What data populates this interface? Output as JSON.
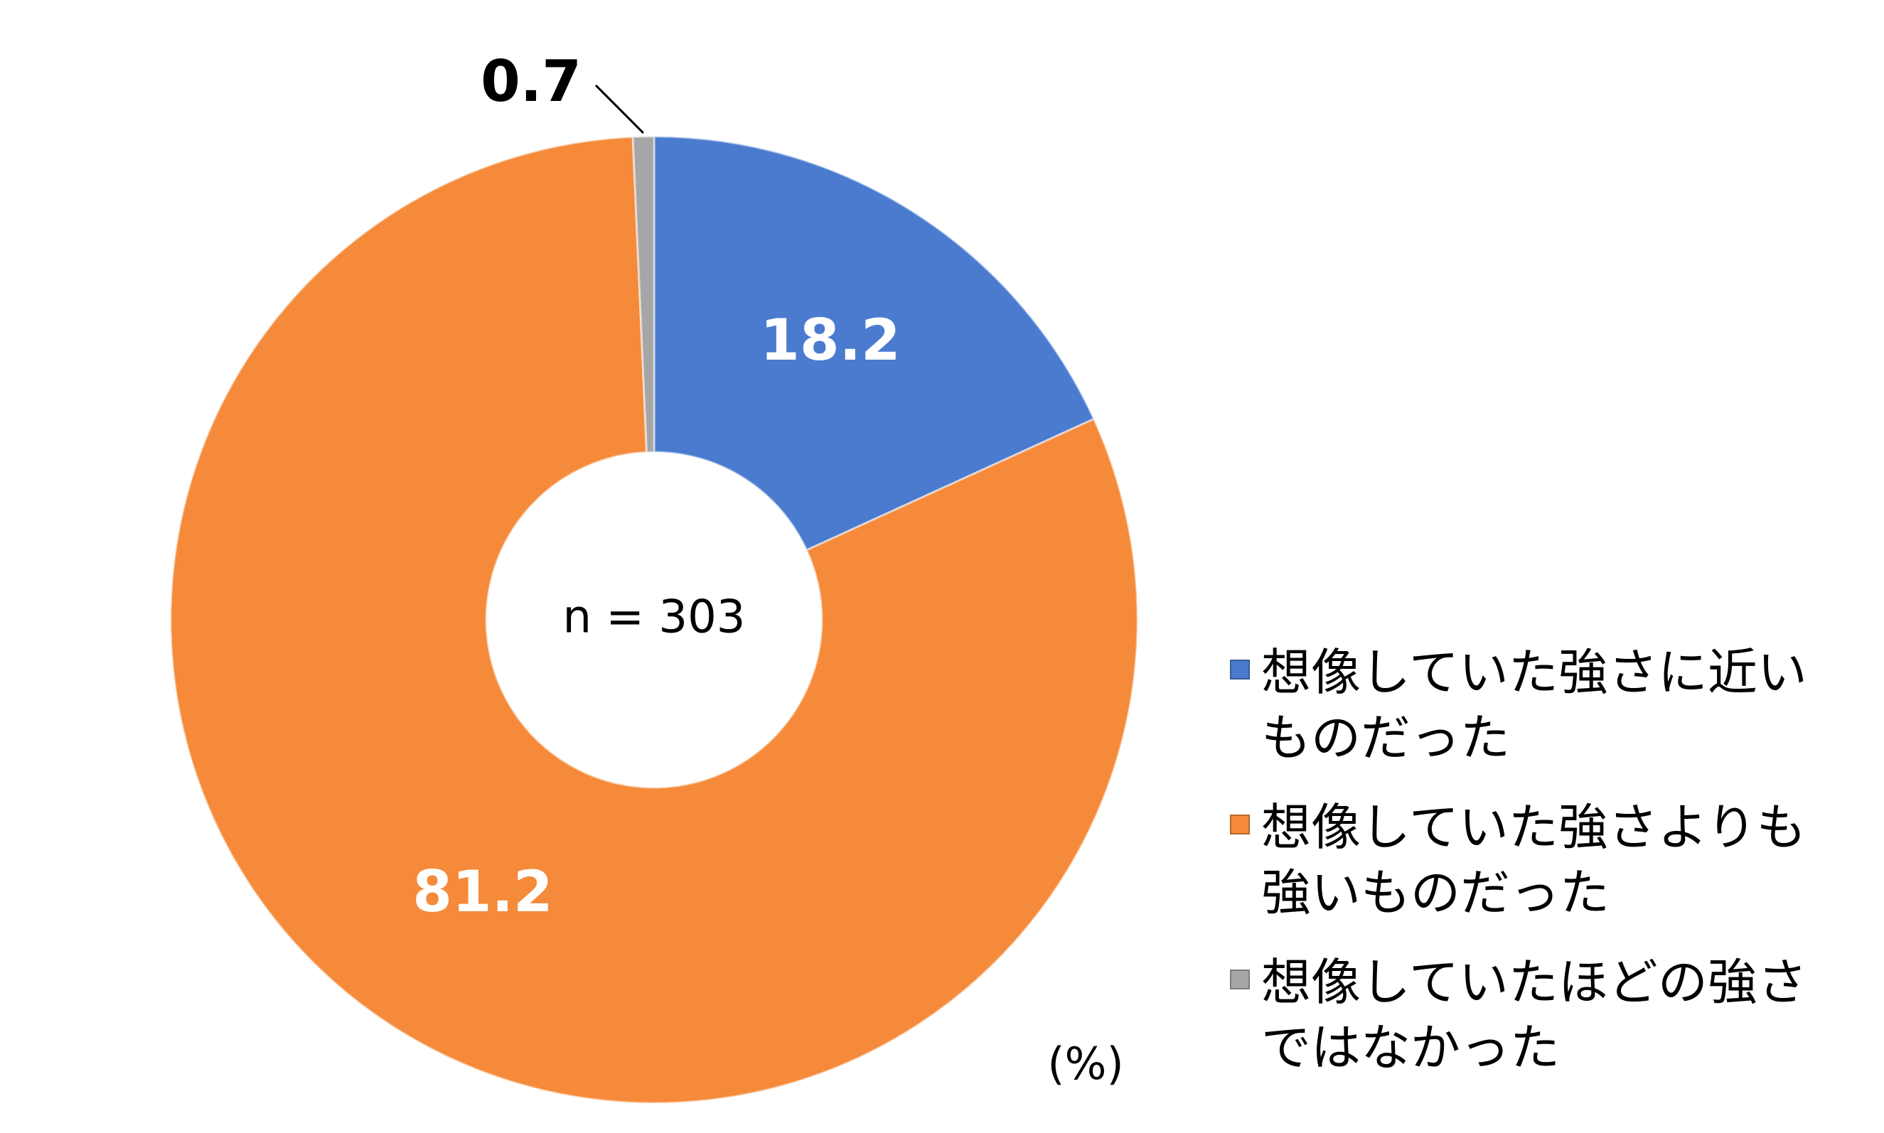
{
  "chart_data": {
    "type": "donut",
    "categories": [
      "想像していた強さに近いものだった",
      "想像していた強さよりも強いものだった",
      "想像していたほどの強さではなかった"
    ],
    "values": [
      18.2,
      81.2,
      0.7
    ],
    "colors": [
      "#4a7bcf",
      "#f58a3a",
      "#a6a6a6"
    ],
    "label_colors": [
      "#ffffff",
      "#ffffff",
      "#000000"
    ],
    "center_label": "n = 303",
    "unit_label": "(%)",
    "legend": "right"
  }
}
